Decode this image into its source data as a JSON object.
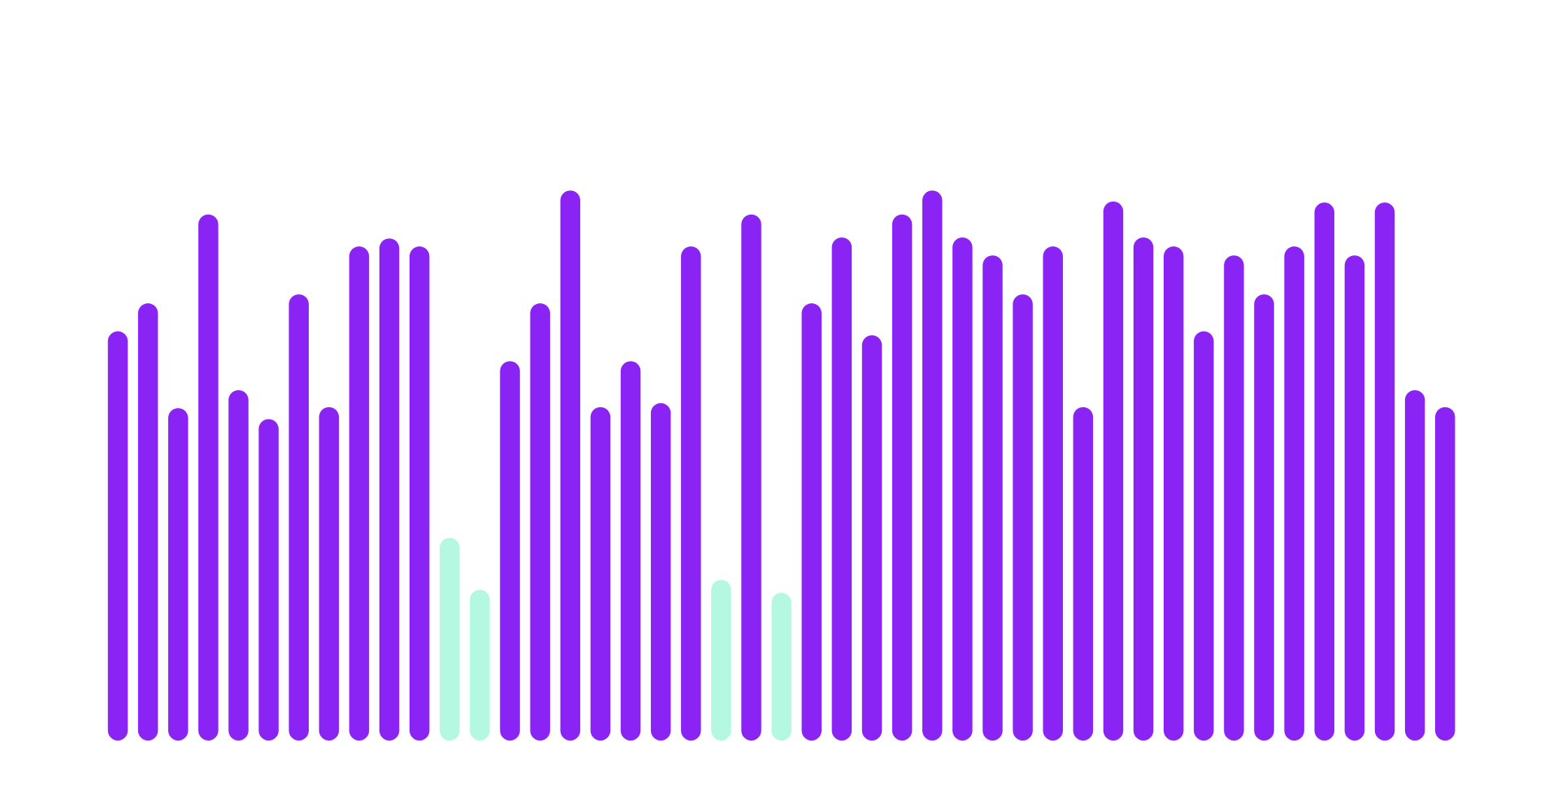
{
  "chart_data": {
    "type": "bar",
    "values": [
      410,
      438,
      333,
      527,
      351,
      322,
      447,
      334,
      495,
      503,
      495,
      203,
      151,
      380,
      438,
      551,
      334,
      380,
      338,
      495,
      161,
      527,
      148,
      438,
      504,
      406,
      527,
      551,
      504,
      486,
      447,
      495,
      334,
      540,
      504,
      495,
      410,
      486,
      447,
      495,
      539,
      486,
      539,
      351,
      334
    ],
    "colors": [
      "#8a24f5",
      "#8a24f5",
      "#8a24f5",
      "#8a24f5",
      "#8a24f5",
      "#8a24f5",
      "#8a24f5",
      "#8a24f5",
      "#8a24f5",
      "#8a24f5",
      "#8a24f5",
      "#b4f8e2",
      "#b4f8e2",
      "#8a24f5",
      "#8a24f5",
      "#8a24f5",
      "#8a24f5",
      "#8a24f5",
      "#8a24f5",
      "#8a24f5",
      "#b4f8e2",
      "#8a24f5",
      "#b4f8e2",
      "#8a24f5",
      "#8a24f5",
      "#8a24f5",
      "#8a24f5",
      "#8a24f5",
      "#8a24f5",
      "#8a24f5",
      "#8a24f5",
      "#8a24f5",
      "#8a24f5",
      "#8a24f5",
      "#8a24f5",
      "#8a24f5",
      "#8a24f5",
      "#8a24f5",
      "#8a24f5",
      "#8a24f5",
      "#8a24f5",
      "#8a24f5",
      "#8a24f5",
      "#8a24f5",
      "#8a24f5"
    ]
  }
}
